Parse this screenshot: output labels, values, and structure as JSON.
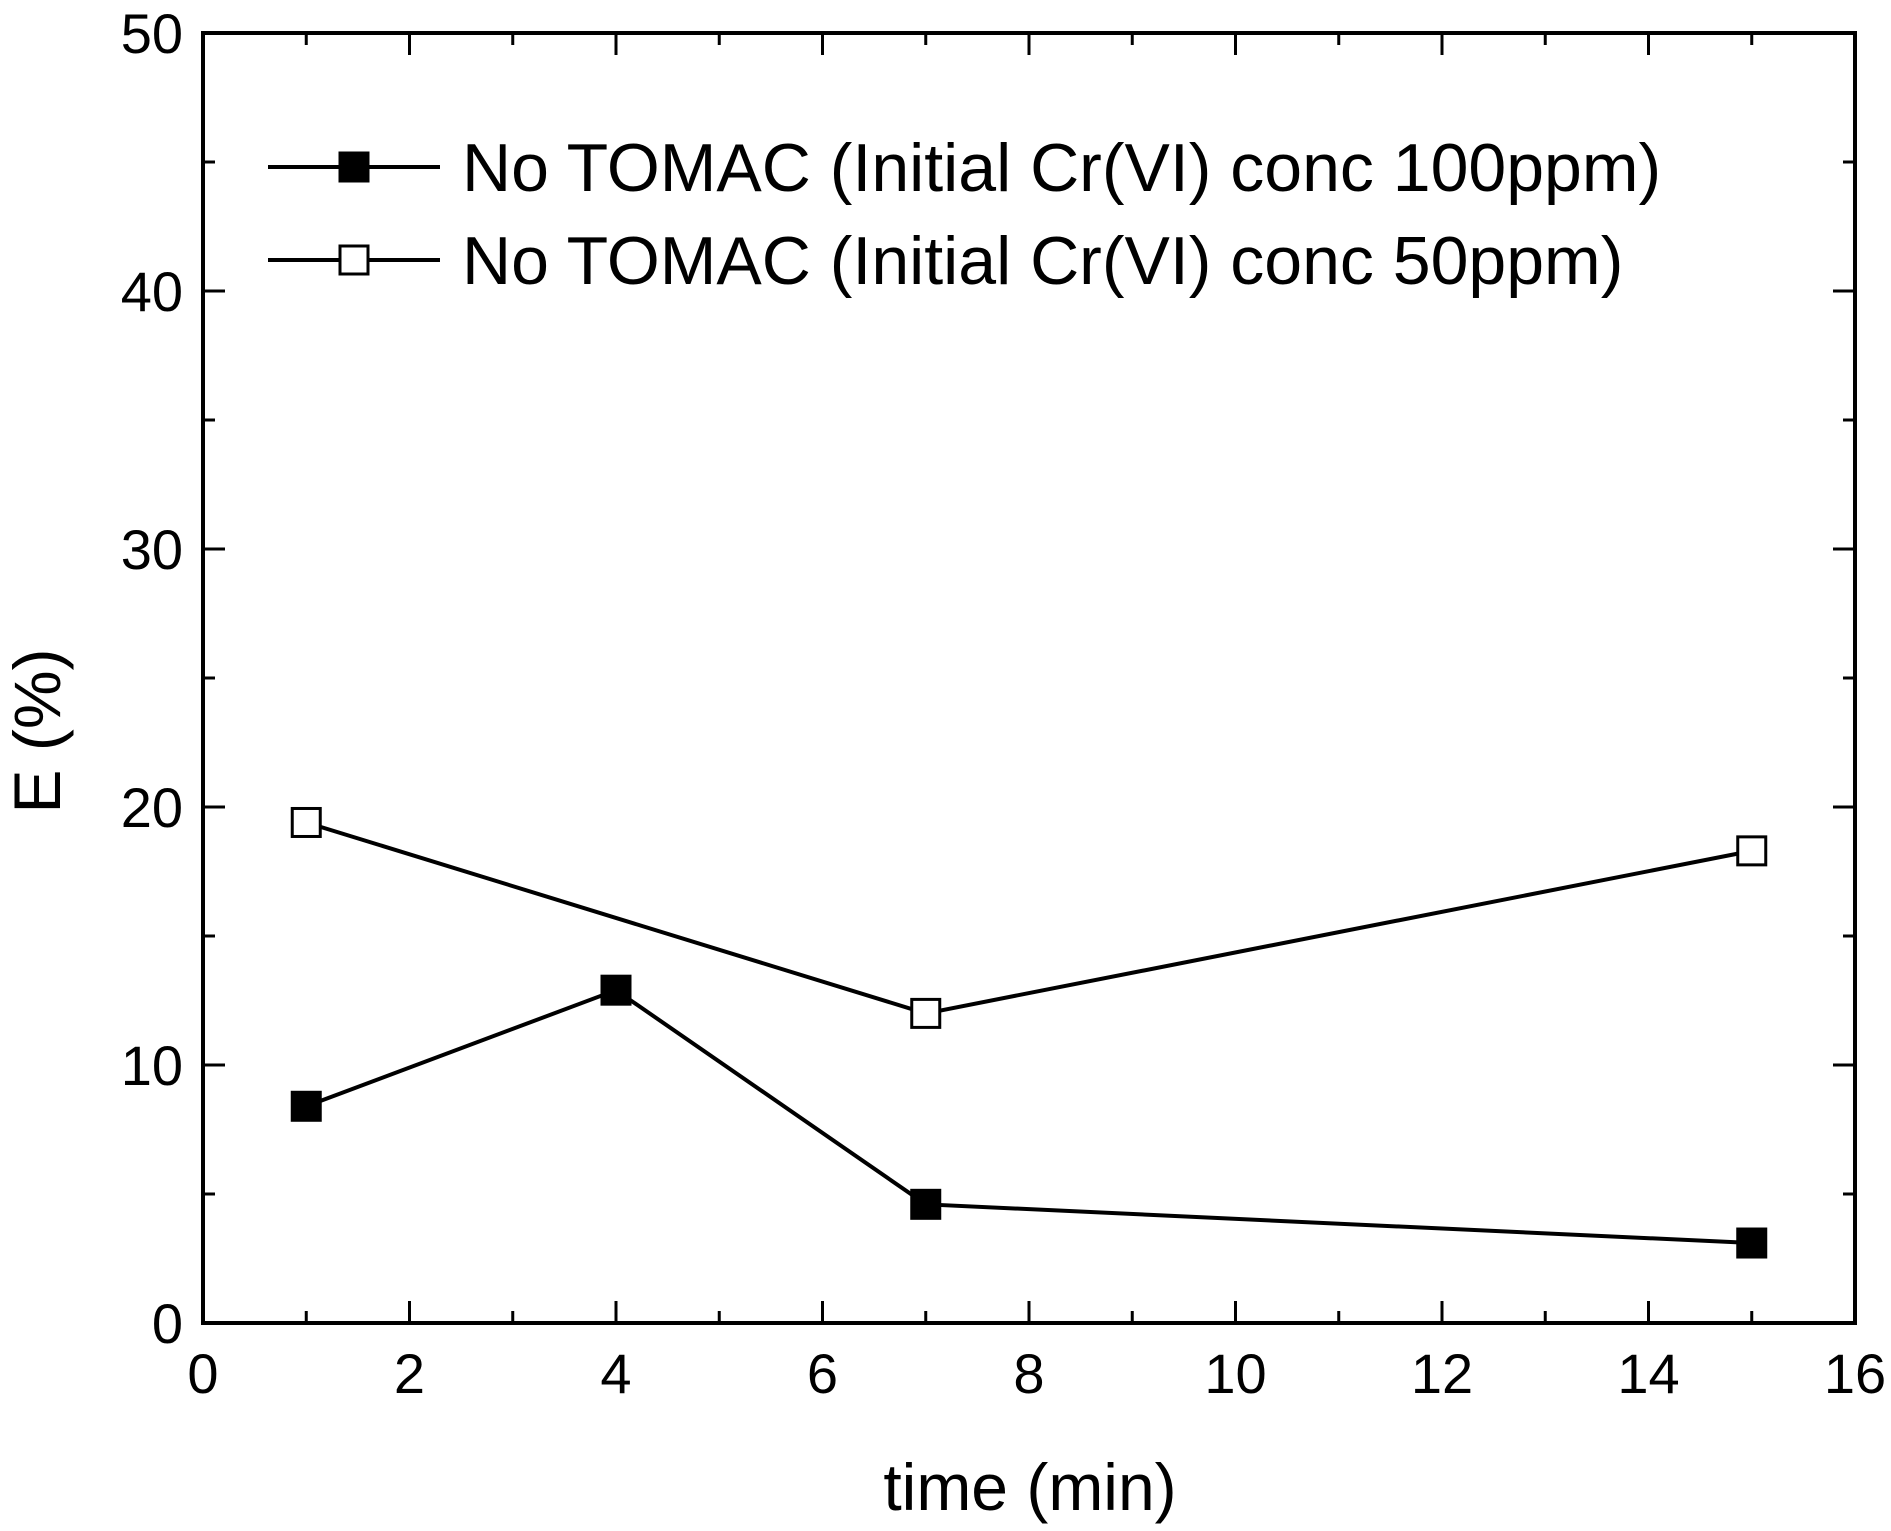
{
  "chart_data": {
    "type": "line",
    "title": "",
    "xlabel": "time (min)",
    "ylabel": "E (%)",
    "xlim": [
      0,
      16
    ],
    "ylim": [
      0,
      50
    ],
    "x_major_ticks": [
      0,
      2,
      4,
      6,
      8,
      10,
      12,
      14,
      16
    ],
    "y_major_ticks": [
      0,
      10,
      20,
      30,
      40,
      50
    ],
    "x_tick_labels": [
      "0",
      "2",
      "4",
      "6",
      "8",
      "10",
      "12",
      "14",
      "16"
    ],
    "y_tick_labels": [
      "0",
      "10",
      "20",
      "30",
      "40",
      "50"
    ],
    "x_minor_step": 1,
    "y_minor_step": 5,
    "grid": false,
    "legend_position": "top-right",
    "series": [
      {
        "name": "No TOMAC (Initial Cr(VI) conc 100ppm)",
        "marker": "filled-square",
        "color": "#000000",
        "x": [
          1,
          4,
          7,
          15
        ],
        "values": [
          8.4,
          12.9,
          4.6,
          3.1
        ]
      },
      {
        "name": "No TOMAC (Initial Cr(VI) conc 50ppm)",
        "marker": "open-square",
        "color": "#000000",
        "x": [
          1,
          7,
          15
        ],
        "values": [
          19.4,
          12.0,
          18.3
        ]
      }
    ]
  }
}
